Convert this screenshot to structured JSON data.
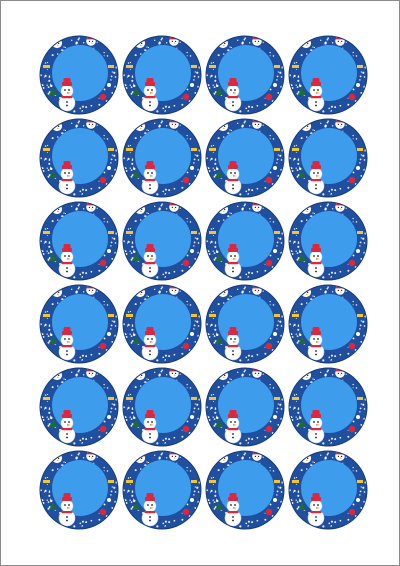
{
  "sheet": {
    "rows": 6,
    "columns": 4,
    "design": "snowman-circle-sticker-icon",
    "colors": {
      "page": "#ffffff",
      "border": "#8a8a8a",
      "ring": "#1f4f9e",
      "ring_edge": "#173c7a",
      "center": "#3d9cec",
      "snow": "#ffffff",
      "hat": "#e0263c",
      "scarf": "#e0263c",
      "carrot": "#f08a1c",
      "eye": "#1a1a1a",
      "gold": "#f3c531",
      "tree": "#1f6a3a"
    }
  }
}
